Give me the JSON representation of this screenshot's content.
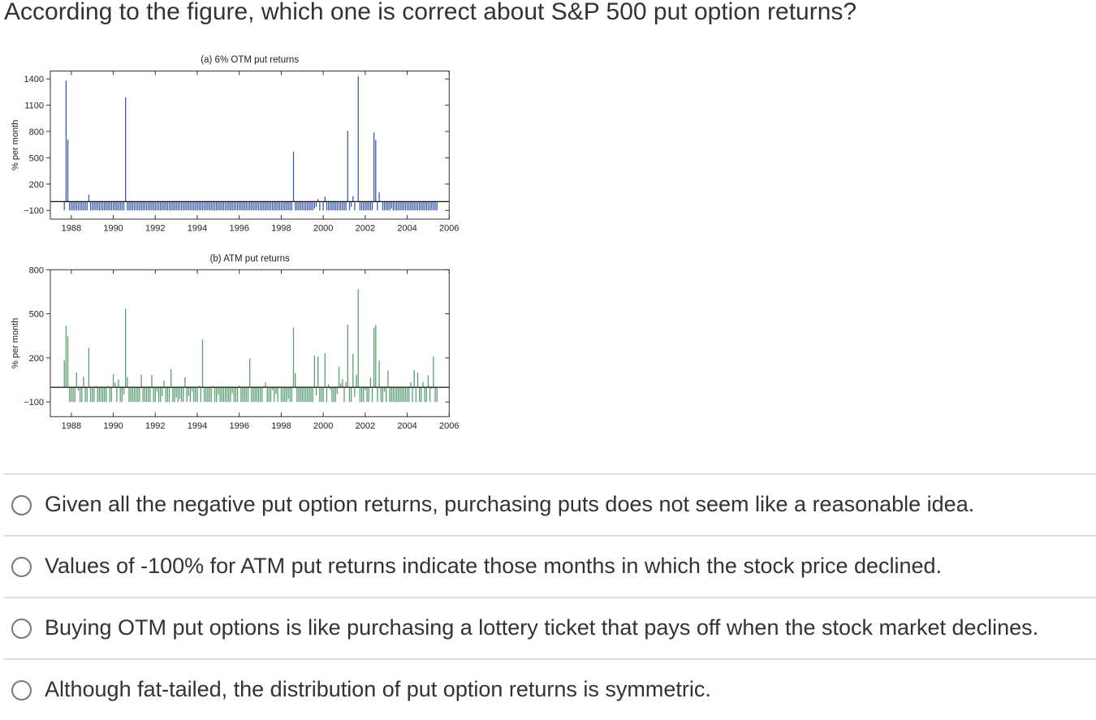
{
  "question": {
    "text": "According to the figure, which one is correct about S&P 500 put option returns?"
  },
  "options": [
    {
      "label": "Given all the negative put option returns, purchasing puts does not seem like a reasonable idea.",
      "selected": false
    },
    {
      "label": "Values of -100% for ATM put returns indicate those months in which the stock price declined.",
      "selected": false
    },
    {
      "label": "Buying OTM put options is like purchasing a lottery ticket that pays off when the stock market declines.",
      "selected": false
    },
    {
      "label": "Although fat-tailed, the distribution of put option returns is symmetric.",
      "selected": false
    }
  ],
  "colors": {
    "otm_bars": "#3f5aa8",
    "atm_bars": "#5a9e72",
    "text": "#333333",
    "divider": "#dedede",
    "radio_border": "#777777"
  },
  "chart_data": [
    {
      "type": "bar",
      "title": "(a) 6% OTM put returns",
      "xlabel": "",
      "ylabel": "% per month",
      "xlim": [
        1987,
        2006
      ],
      "ylim": [
        -200,
        1490
      ],
      "x_ticks": [
        1988,
        1990,
        1992,
        1994,
        1996,
        1998,
        2000,
        2002,
        2004,
        2006
      ],
      "y_ticks": [
        1400,
        1100,
        800,
        500,
        200,
        -100
      ],
      "y_tick_labels": [
        "1400",
        "1100",
        "800",
        "500",
        "200",
        "−100"
      ],
      "grid": false,
      "legend": "none",
      "start": "1987-09",
      "frequency": "monthly",
      "series": [
        {
          "name": "6% OTM put returns",
          "color": "#3f5aa8",
          "values": [
            -100,
            1380,
            710,
            -100,
            -100,
            -100,
            -100,
            -100,
            -100,
            -100,
            -100,
            -100,
            -100,
            -100,
            80,
            -100,
            -100,
            -100,
            -100,
            -100,
            -100,
            -100,
            -100,
            -100,
            -100,
            -100,
            -100,
            -100,
            -100,
            -100,
            -100,
            -100,
            -100,
            -100,
            -100,
            1190,
            -100,
            -100,
            -100,
            -100,
            -100,
            -100,
            -100,
            -100,
            -100,
            -100,
            -100,
            -100,
            -100,
            -100,
            -100,
            -100,
            -100,
            -100,
            -100,
            -100,
            -100,
            -100,
            -100,
            -100,
            -100,
            -100,
            -100,
            -100,
            -100,
            -100,
            -100,
            -100,
            -100,
            -100,
            -100,
            -100,
            -100,
            -100,
            -100,
            -100,
            -100,
            -100,
            -100,
            -100,
            -100,
            -100,
            -100,
            -100,
            -100,
            -100,
            -100,
            -100,
            -100,
            -100,
            -100,
            -100,
            -100,
            -100,
            -100,
            -100,
            -100,
            -100,
            -100,
            -100,
            -100,
            -100,
            -100,
            -100,
            -100,
            -100,
            -100,
            -100,
            -100,
            -100,
            -100,
            -100,
            -100,
            -100,
            -100,
            -100,
            -100,
            -100,
            -100,
            -100,
            -100,
            -100,
            -100,
            -100,
            -100,
            -100,
            -100,
            -100,
            -100,
            -100,
            -100,
            570,
            -100,
            -100,
            -100,
            -100,
            -100,
            -100,
            -100,
            -100,
            -100,
            -100,
            -100,
            -80,
            -60,
            30,
            -100,
            0,
            -100,
            58,
            -100,
            -100,
            -100,
            -100,
            -100,
            -100,
            -100,
            -100,
            -100,
            -100,
            -100,
            -100,
            806,
            -100,
            -60,
            61,
            -100,
            0,
            1431,
            -100,
            -100,
            -100,
            -100,
            -100,
            -100,
            -100,
            -100,
            790,
            704,
            -100,
            107,
            0,
            -100,
            -100,
            -100,
            -100,
            -100,
            -80,
            -100,
            -100,
            -100,
            -100,
            -100,
            -100,
            -100,
            -100,
            -100,
            -100,
            -100,
            -100,
            -100,
            -100,
            -100,
            -100,
            -100,
            -100,
            -100,
            -100,
            -100,
            -100,
            -100,
            -100,
            -100,
            -100
          ]
        }
      ]
    },
    {
      "type": "bar",
      "title": "(b) ATM put returns",
      "xlabel": "",
      "ylabel": "% per month",
      "xlim": [
        1987,
        2006
      ],
      "ylim": [
        -200,
        800
      ],
      "x_ticks": [
        1988,
        1990,
        1992,
        1994,
        1996,
        1998,
        2000,
        2002,
        2004,
        2006
      ],
      "y_ticks": [
        800,
        500,
        200,
        -100
      ],
      "y_tick_labels": [
        "800",
        "500",
        "200",
        "−100"
      ],
      "grid": false,
      "legend": "none",
      "start": "1987-09",
      "frequency": "monthly",
      "series": [
        {
          "name": "ATM put returns",
          "color": "#5a9e72",
          "values": [
            182,
            418,
            347,
            -100,
            -100,
            -100,
            -100,
            100,
            -24,
            -100,
            -100,
            71,
            -100,
            -100,
            268,
            -100,
            -100,
            -100,
            9,
            -100,
            -100,
            -100,
            -100,
            -100,
            -100,
            8,
            -100,
            -100,
            90,
            31,
            -100,
            53,
            -100,
            -100,
            -50,
            535,
            69,
            -100,
            -100,
            -100,
            -100,
            -100,
            -100,
            -100,
            86,
            -100,
            -100,
            -100,
            -100,
            -100,
            84,
            -100,
            -100,
            -30,
            -100,
            -100,
            -60,
            46,
            -100,
            -100,
            -100,
            123,
            -100,
            -100,
            -70,
            -100,
            -80,
            -100,
            -100,
            68,
            -100,
            -60,
            -100,
            -30,
            -100,
            -100,
            -100,
            9,
            -100,
            325,
            -100,
            -100,
            -100,
            -100,
            -100,
            10,
            -100,
            -100,
            -50,
            -100,
            -100,
            -100,
            -100,
            -100,
            -100,
            -100,
            -40,
            -100,
            -100,
            -100,
            10,
            -100,
            -100,
            -100,
            -100,
            -100,
            196,
            -100,
            -100,
            -100,
            -100,
            -100,
            -100,
            -100,
            8,
            35,
            -100,
            -100,
            -100,
            -20,
            -100,
            -45,
            -100,
            5,
            -100,
            -100,
            -100,
            -100,
            -80,
            -100,
            -100,
            407,
            95,
            -100,
            -100,
            -100,
            -100,
            -100,
            -100,
            -100,
            -100,
            -100,
            -100,
            215,
            -55,
            209,
            -100,
            -100,
            -100,
            233,
            -100,
            20,
            -15,
            -100,
            -100,
            -100,
            -45,
            141,
            26,
            55,
            -100,
            36,
            425,
            -100,
            -100,
            229,
            -65,
            86,
            668,
            -100,
            -100,
            -100,
            -20,
            -100,
            -100,
            66,
            -100,
            405,
            425,
            -100,
            182,
            -100,
            -100,
            -30,
            -100,
            115,
            -100,
            -100,
            -100,
            -100,
            -100,
            -100,
            -100,
            -100,
            -100,
            -100,
            -100,
            -100,
            35,
            -100,
            117,
            -100,
            99,
            -100,
            -100,
            38,
            -100,
            -100,
            82,
            -100,
            -10,
            209,
            -100,
            -100
          ]
        }
      ]
    }
  ]
}
